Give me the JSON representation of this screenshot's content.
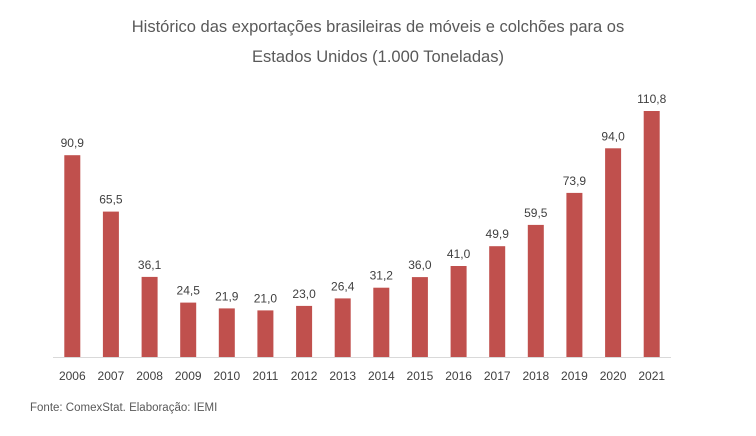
{
  "chart_data": {
    "type": "bar",
    "title_line1": "Histórico das exportações brasileiras de móveis e colchões para os",
    "title_line2": "Estados Unidos (1.000 Toneladas)",
    "categories": [
      "2006",
      "2007",
      "2008",
      "2009",
      "2010",
      "2011",
      "2012",
      "2013",
      "2014",
      "2015",
      "2016",
      "2017",
      "2018",
      "2019",
      "2020",
      "2021"
    ],
    "values": [
      90.9,
      65.5,
      36.1,
      24.5,
      21.9,
      21.0,
      23.0,
      26.4,
      31.2,
      36.0,
      41.0,
      49.9,
      59.5,
      73.9,
      94.0,
      110.8
    ],
    "value_labels": [
      "90,9",
      "65,5",
      "36,1",
      "24,5",
      "21,9",
      "21,0",
      "23,0",
      "26,4",
      "31,2",
      "36,0",
      "41,0",
      "49,9",
      "59,5",
      "73,9",
      "94,0",
      "110,8"
    ],
    "bar_color": "#c0504d",
    "axis_color": "#d9d9d9",
    "xlabel": "",
    "ylabel": "",
    "ylim": [
      0,
      110.8
    ],
    "grid": false,
    "legend": "none"
  },
  "source": "Fonte: ComexStat. Elaboração: IEMI"
}
